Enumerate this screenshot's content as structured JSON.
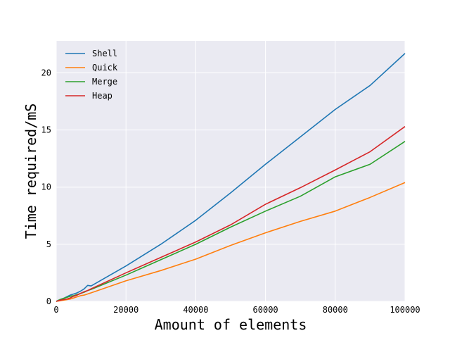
{
  "chart_data": {
    "type": "line",
    "xlabel": "Amount of elements",
    "ylabel": "Time required/mS",
    "xlim": [
      0,
      100000
    ],
    "ylim": [
      0,
      22.8
    ],
    "xticks": [
      "0",
      "20000",
      "40000",
      "60000",
      "80000",
      "100000"
    ],
    "yticks": [
      "0",
      "5",
      "10",
      "15",
      "20"
    ],
    "grid": true,
    "background": "#eaeaf2",
    "legend_position": "top-left",
    "x": [
      0,
      1000,
      2000,
      3000,
      4000,
      5000,
      6000,
      7000,
      8000,
      9000,
      10000,
      20000,
      30000,
      40000,
      50000,
      60000,
      70000,
      80000,
      90000,
      100000
    ],
    "series": [
      {
        "name": "Shell",
        "color": "#1f77b4",
        "values": [
          0.0,
          0.15,
          0.25,
          0.4,
          0.55,
          0.65,
          0.75,
          0.9,
          1.1,
          1.4,
          1.35,
          3.1,
          5.0,
          7.1,
          9.5,
          12.0,
          14.4,
          16.8,
          18.9,
          21.7
        ]
      },
      {
        "name": "Quick",
        "color": "#ff7f0e",
        "values": [
          0.0,
          0.05,
          0.1,
          0.15,
          0.2,
          0.3,
          0.4,
          0.5,
          0.55,
          0.65,
          0.75,
          1.8,
          2.7,
          3.7,
          4.9,
          6.0,
          7.0,
          7.9,
          9.1,
          10.4
        ]
      },
      {
        "name": "Merge",
        "color": "#2ca02c",
        "values": [
          0.0,
          0.15,
          0.25,
          0.35,
          0.45,
          0.5,
          0.6,
          0.7,
          0.8,
          0.95,
          1.05,
          2.3,
          3.65,
          5.0,
          6.5,
          7.9,
          9.2,
          10.9,
          12.0,
          14.0
        ]
      },
      {
        "name": "Heap",
        "color": "#d62728",
        "values": [
          0.0,
          0.1,
          0.15,
          0.2,
          0.3,
          0.45,
          0.55,
          0.7,
          0.85,
          0.95,
          1.1,
          2.5,
          3.85,
          5.2,
          6.7,
          8.5,
          9.95,
          11.5,
          13.1,
          15.3
        ]
      }
    ]
  }
}
